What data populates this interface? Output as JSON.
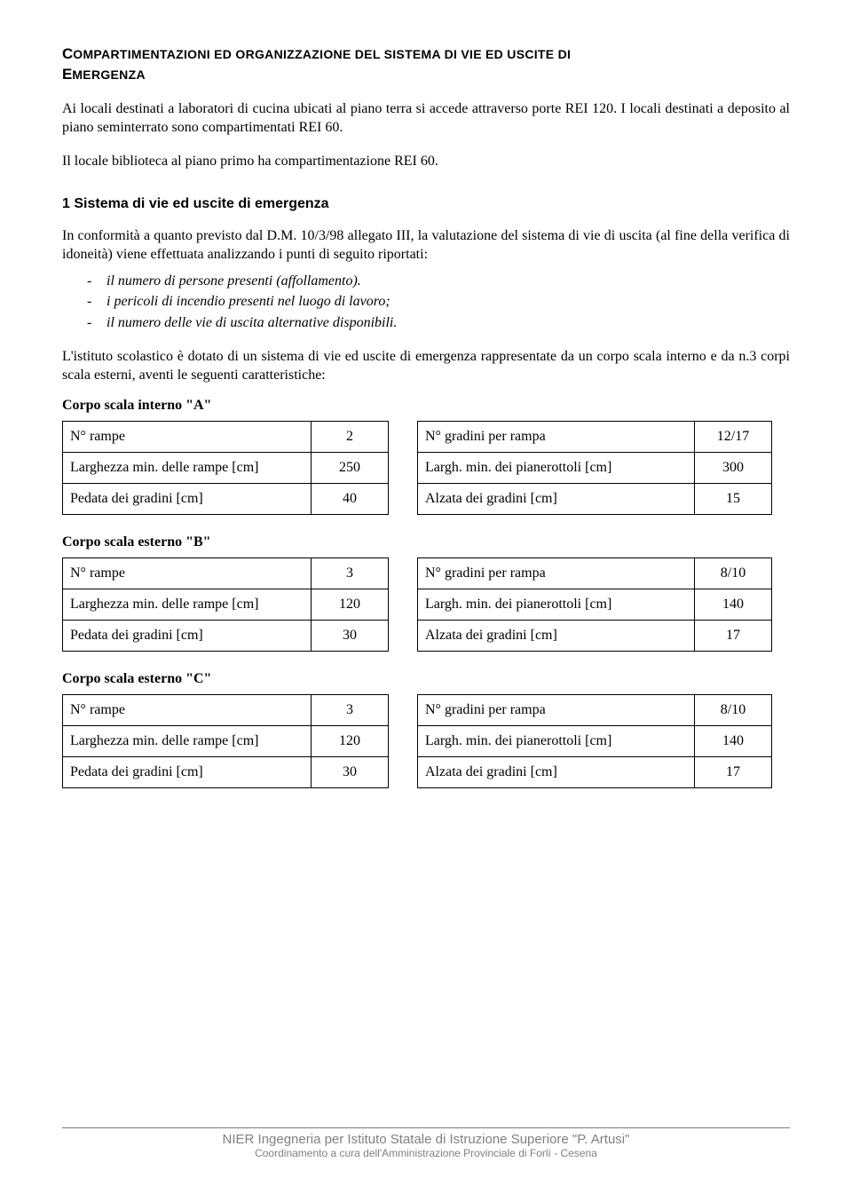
{
  "title_smallcaps_1": "C",
  "title_rest_1": "OMPARTIMENTAZIONI ED ORGANIZZAZIONE DEL SISTEMA DI VIE ED USCITE DI",
  "title_smallcaps_2": "E",
  "title_rest_2": "MERGENZA",
  "para1": "Ai locali destinati a laboratori di cucina ubicati al piano terra si accede attraverso porte REI 120. I locali destinati a deposito al piano seminterrato sono compartimentati REI 60.",
  "para2": "Il locale biblioteca al piano primo ha compartimentazione REI 60.",
  "section1": "1 Sistema di vie ed uscite di emergenza",
  "para3": "In conformità a quanto previsto dal D.M. 10/3/98 allegato III, la valutazione del sistema di vie di uscita (al fine della verifica di idoneità) viene effettuata analizzando i punti di seguito riportati:",
  "bullets": [
    "il numero di persone presenti (affollamento).",
    "i pericoli di incendio presenti nel luogo di lavoro;",
    "il numero delle vie di uscita alternative disponibili."
  ],
  "para4": "L'istituto scolastico è dotato di un sistema di vie ed uscite di emergenza rappresentate da un corpo scala interno e da n.3 corpi scala esterni, aventi le seguenti caratteristiche:",
  "tables": [
    {
      "title": "Corpo scala interno \"A\"",
      "left": [
        {
          "label": "N° rampe",
          "value": "2"
        },
        {
          "label": "Larghezza min. delle rampe [cm]",
          "value": "250"
        },
        {
          "label": "Pedata dei gradini [cm]",
          "value": "40"
        }
      ],
      "right": [
        {
          "label": "N° gradini per rampa",
          "value": "12/17"
        },
        {
          "label": "Largh. min. dei pianerottoli [cm]",
          "value": "300"
        },
        {
          "label": "Alzata dei gradini [cm]",
          "value": "15"
        }
      ]
    },
    {
      "title": "Corpo scala esterno \"B\"",
      "left": [
        {
          "label": "N° rampe",
          "value": "3"
        },
        {
          "label": "Larghezza min. delle rampe [cm]",
          "value": "120"
        },
        {
          "label": "Pedata dei gradini [cm]",
          "value": "30"
        }
      ],
      "right": [
        {
          "label": "N° gradini per rampa",
          "value": "8/10"
        },
        {
          "label": "Largh. min. dei pianerottoli [cm]",
          "value": "140"
        },
        {
          "label": "Alzata dei gradini [cm]",
          "value": "17"
        }
      ]
    },
    {
      "title": "Corpo scala esterno \"C\"",
      "left": [
        {
          "label": "N° rampe",
          "value": "3"
        },
        {
          "label": "Larghezza min. delle rampe [cm]",
          "value": "120"
        },
        {
          "label": "Pedata dei gradini [cm]",
          "value": "30"
        }
      ],
      "right": [
        {
          "label": "N° gradini per rampa",
          "value": "8/10"
        },
        {
          "label": "Largh. min. dei pianerottoli [cm]",
          "value": "140"
        },
        {
          "label": "Alzata dei gradini [cm]",
          "value": "17"
        }
      ]
    }
  ],
  "footer1": "NIER Ingegneria per Istituto Statale di Istruzione Superiore \"P. Artusi\"",
  "footer2": "Coordinamento a cura dell'Amministrazione Provinciale di Forlì - Cesena"
}
